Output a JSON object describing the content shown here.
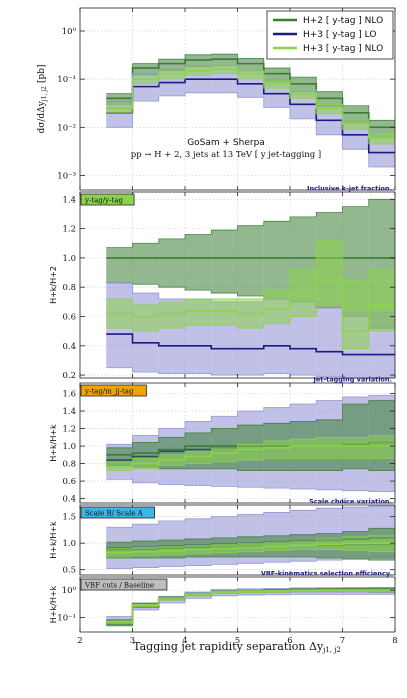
{
  "chart_data": [
    {
      "type": "line",
      "panel": "main",
      "ylabel": "dσ/dΔy_{j1,j2} [pb]",
      "ylabel_display": "dσ/dΔy",
      "ylabel_sub": "j1, j2",
      "ylabel_unit": "[pb]",
      "yscale": "log",
      "ylim": [
        0.0005,
        3
      ],
      "ytick_labels": [
        "10⁰",
        "10⁻¹",
        "10⁻²",
        "10⁻³"
      ],
      "ytick_values": [
        1,
        0.1,
        0.01,
        0.001
      ],
      "annotation_line1": "GoSam + Sherpa",
      "annotation_line2": "pp → H + 2, 3 jets at 13 TeV  [ y jet-tagging ]",
      "legend": [
        {
          "label": "H+2 [ y-tag ] NLO",
          "color": "#3a7d33"
        },
        {
          "label": "H+3 [ y-tag ] LO",
          "color": "#1a1a80"
        },
        {
          "label": "H+3 [ y-tag ] NLO",
          "color": "#8cd24c"
        }
      ],
      "bin_edges": [
        2.5,
        3,
        3.5,
        4,
        4.5,
        5,
        5.5,
        6,
        6.5,
        7,
        7.5,
        8
      ],
      "series": [
        {
          "name": "H+2 [ y-tag ] NLO",
          "color": "#3a7d33",
          "fill": "#3a7d33",
          "values": [
            0.04,
            0.17,
            0.21,
            0.25,
            0.26,
            0.21,
            0.13,
            0.08,
            0.04,
            0.02,
            0.01
          ],
          "lower": [
            0.03,
            0.12,
            0.15,
            0.18,
            0.19,
            0.15,
            0.09,
            0.055,
            0.028,
            0.012,
            0.006
          ],
          "upper": [
            0.05,
            0.21,
            0.26,
            0.32,
            0.33,
            0.27,
            0.17,
            0.11,
            0.055,
            0.028,
            0.014
          ]
        },
        {
          "name": "H+3 [ y-tag ] LO",
          "color": "#1a1a80",
          "fill": "#8e8ed4",
          "values": [
            0.02,
            0.07,
            0.085,
            0.1,
            0.1,
            0.08,
            0.05,
            0.03,
            0.014,
            0.007,
            0.003
          ],
          "lower": [
            0.01,
            0.035,
            0.045,
            0.052,
            0.052,
            0.042,
            0.026,
            0.015,
            0.007,
            0.0035,
            0.0015
          ],
          "upper": [
            0.035,
            0.13,
            0.16,
            0.19,
            0.19,
            0.15,
            0.095,
            0.058,
            0.027,
            0.014,
            0.006
          ]
        },
        {
          "name": "H+3 [ y-tag ] NLO",
          "color": "#8cd24c",
          "fill": "#8cd24c",
          "values": [
            0.025,
            0.1,
            0.13,
            0.15,
            0.16,
            0.13,
            0.08,
            0.05,
            0.025,
            0.012,
            0.006
          ],
          "lower": [
            0.02,
            0.08,
            0.1,
            0.12,
            0.13,
            0.1,
            0.065,
            0.04,
            0.019,
            0.009,
            0.0045
          ],
          "upper": [
            0.032,
            0.12,
            0.15,
            0.18,
            0.19,
            0.15,
            0.095,
            0.06,
            0.03,
            0.015,
            0.0075
          ]
        }
      ]
    },
    {
      "type": "line",
      "panel": "ratio1",
      "ylabel": "H+k/H+2",
      "tag": "y-tag/y-tag",
      "tag_color": "#8cd24c",
      "note": "Inclusive k-jet fraction.",
      "ylim": [
        0.18,
        1.45
      ],
      "ytick_labels": [
        "0.2",
        "0.4",
        "0.6",
        "0.8",
        "1.0",
        "1.2",
        "1.4"
      ],
      "ytick_values": [
        0.2,
        0.4,
        0.6,
        0.8,
        1.0,
        1.2,
        1.4
      ],
      "bin_edges": [
        2.5,
        3,
        3.5,
        4,
        4.5,
        5,
        5.5,
        6,
        6.5,
        7,
        7.5,
        8
      ],
      "series": [
        {
          "name": "H+2",
          "color": "#3a7d33",
          "fill": "#3a7d33",
          "values": [
            1.0,
            1.0,
            1.0,
            1.0,
            1.0,
            1.0,
            1.0,
            1.0,
            1.0,
            1.0,
            1.0
          ],
          "lower": [
            0.83,
            0.82,
            0.8,
            0.78,
            0.76,
            0.74,
            0.72,
            0.7,
            0.66,
            0.6,
            0.52
          ],
          "upper": [
            1.07,
            1.1,
            1.13,
            1.16,
            1.19,
            1.22,
            1.25,
            1.28,
            1.31,
            1.35,
            1.4
          ]
        },
        {
          "name": "H+3 LO",
          "color": "#1a1a80",
          "fill": "#8e8ed4",
          "values": [
            0.48,
            0.42,
            0.4,
            0.4,
            0.38,
            0.38,
            0.4,
            0.38,
            0.36,
            0.34,
            0.34
          ],
          "lower": [
            0.25,
            0.22,
            0.21,
            0.21,
            0.2,
            0.2,
            0.21,
            0.2,
            0.19,
            0.18,
            0.18
          ],
          "upper": [
            0.83,
            0.76,
            0.72,
            0.72,
            0.7,
            0.7,
            0.72,
            0.7,
            0.66,
            0.63,
            0.63
          ]
        },
        {
          "name": "H+3 NLO",
          "color": "#8cd24c",
          "fill": "#8cd24c",
          "values": [
            0.62,
            0.6,
            0.62,
            0.64,
            0.64,
            0.62,
            0.65,
            0.75,
            0.85,
            0.5,
            0.68
          ],
          "lower": [
            0.52,
            0.5,
            0.52,
            0.54,
            0.54,
            0.52,
            0.55,
            0.6,
            0.68,
            0.38,
            0.5
          ],
          "upper": [
            0.72,
            0.68,
            0.7,
            0.72,
            0.72,
            0.72,
            0.78,
            0.92,
            1.12,
            0.85,
            0.92
          ]
        }
      ]
    },
    {
      "type": "line",
      "panel": "ratio2",
      "ylabel": "H+k/H+k",
      "tag": "y-tag/m_jj-tag",
      "tag_color": "#f0a400",
      "note": "Jet-tagging variation.",
      "ylim": [
        0.35,
        1.72
      ],
      "ytick_labels": [
        "0.4",
        "0.6",
        "0.8",
        "1.0",
        "1.2",
        "1.4",
        "1.6"
      ],
      "ytick_values": [
        0.4,
        0.6,
        0.8,
        1.0,
        1.2,
        1.4,
        1.6
      ],
      "bin_edges": [
        2.5,
        3,
        3.5,
        4,
        4.5,
        5,
        5.5,
        6,
        6.5,
        7,
        7.5,
        8
      ],
      "series": [
        {
          "name": "H+3 LO",
          "color": "#1a1a80",
          "fill": "#8e8ed4",
          "values": [
            0.84,
            0.88,
            0.94,
            0.96,
            0.98,
            1.0,
            1.0,
            1.0,
            1.0,
            1.0,
            1.0
          ],
          "lower": [
            0.62,
            0.58,
            0.56,
            0.55,
            0.54,
            0.53,
            0.52,
            0.51,
            0.5,
            0.49,
            0.48
          ],
          "upper": [
            1.02,
            1.12,
            1.2,
            1.28,
            1.34,
            1.4,
            1.44,
            1.48,
            1.52,
            1.56,
            1.58
          ]
        },
        {
          "name": "H+2 NLO",
          "color": "#3a7d33",
          "fill": "#3a7d33",
          "values": [
            0.9,
            0.92,
            0.96,
            1.0,
            1.0,
            1.0,
            1.0,
            1.0,
            1.0,
            1.02,
            1.04
          ],
          "lower": [
            0.78,
            0.76,
            0.74,
            0.74,
            0.74,
            0.72,
            0.72,
            0.72,
            0.72,
            0.74,
            0.72
          ],
          "upper": [
            0.98,
            1.04,
            1.1,
            1.15,
            1.2,
            1.24,
            1.26,
            1.28,
            1.3,
            1.48,
            1.52
          ]
        },
        {
          "name": "H+3 NLO",
          "color": "#8cd24c",
          "fill": "#8cd24c",
          "values": [
            0.76,
            0.8,
            0.84,
            0.88,
            0.92,
            0.96,
            0.98,
            1.0,
            1.0,
            1.0,
            1.0
          ],
          "lower": [
            0.72,
            0.74,
            0.78,
            0.8,
            0.82,
            0.84,
            0.86,
            0.86,
            0.86,
            0.86,
            0.86
          ],
          "upper": [
            0.82,
            0.86,
            0.9,
            0.94,
            0.98,
            1.02,
            1.06,
            1.08,
            1.1,
            1.1,
            1.12
          ]
        }
      ]
    },
    {
      "type": "line",
      "panel": "ratio3",
      "ylabel": "H+k/H+k",
      "tag": "Scale B/ Scale A",
      "tag_color": "#3cb4e6",
      "note": "Scale choice variation.",
      "ylim": [
        0.4,
        1.72
      ],
      "ytick_labels": [
        "0.5",
        "1.0",
        "1.5"
      ],
      "ytick_values": [
        0.5,
        1.0,
        1.5
      ],
      "bin_edges": [
        2.5,
        3,
        3.5,
        4,
        4.5,
        5,
        5.5,
        6,
        6.5,
        7,
        7.5,
        8
      ],
      "series": [
        {
          "name": "H+3 LO",
          "color": "#1a1a80",
          "fill": "#8e8ed4",
          "values": [
            0.9,
            0.92,
            0.94,
            0.96,
            0.98,
            1.0,
            1.02,
            1.04,
            1.06,
            1.08,
            1.1
          ],
          "lower": [
            0.52,
            0.54,
            0.56,
            0.58,
            0.6,
            0.62,
            0.64,
            0.66,
            0.68,
            0.7,
            0.72
          ],
          "upper": [
            1.3,
            1.36,
            1.42,
            1.46,
            1.5,
            1.54,
            1.58,
            1.62,
            1.66,
            1.68,
            1.7
          ]
        },
        {
          "name": "H+2 NLO",
          "color": "#3a7d33",
          "fill": "#3a7d33",
          "values": [
            0.88,
            0.88,
            0.9,
            0.92,
            0.92,
            0.94,
            0.94,
            0.96,
            0.96,
            0.98,
            0.98
          ],
          "lower": [
            0.72,
            0.72,
            0.72,
            0.74,
            0.74,
            0.74,
            0.74,
            0.74,
            0.72,
            0.7,
            0.68
          ],
          "upper": [
            1.02,
            1.04,
            1.06,
            1.08,
            1.1,
            1.12,
            1.14,
            1.16,
            1.18,
            1.22,
            1.28
          ]
        },
        {
          "name": "H+3 NLO",
          "color": "#8cd24c",
          "fill": "#8cd24c",
          "values": [
            0.82,
            0.84,
            0.86,
            0.88,
            0.9,
            0.92,
            0.94,
            0.96,
            0.98,
            1.0,
            1.0
          ],
          "lower": [
            0.74,
            0.76,
            0.78,
            0.8,
            0.82,
            0.84,
            0.86,
            0.88,
            0.88,
            0.86,
            0.84
          ],
          "upper": [
            0.9,
            0.92,
            0.94,
            0.96,
            0.98,
            1.0,
            1.02,
            1.04,
            1.08,
            1.12,
            1.14
          ]
        }
      ]
    },
    {
      "type": "line",
      "panel": "ratio4",
      "ylabel": "H+k/H+k",
      "tag": "VBF cuts / Baseline",
      "tag_color": "#bdbdbd",
      "note": "VBF-kinematics selection efficiency.",
      "yscale": "log",
      "ylim": [
        0.03,
        3
      ],
      "ytick_labels": [
        "10⁰",
        "10⁻¹"
      ],
      "ytick_values": [
        1,
        0.1
      ],
      "xlabel": "Tagging jet rapidity separation  Δy_{j1, j2}",
      "xlabel_display": "Tagging jet rapidity separation  Δy",
      "xlabel_sub": "j1, j2",
      "xlim": [
        2,
        8
      ],
      "xtick_labels": [
        "2",
        "3",
        "4",
        "5",
        "6",
        "7",
        "8"
      ],
      "xtick_values": [
        2,
        3,
        4,
        5,
        6,
        7,
        8
      ],
      "bin_edges": [
        2.5,
        3,
        3.5,
        4,
        4.5,
        5,
        5.5,
        6,
        6.5,
        7,
        7.5,
        8
      ],
      "series": [
        {
          "name": "H+3 LO",
          "color": "#1a1a80",
          "fill": "#8e8ed4",
          "values": [
            0.08,
            0.25,
            0.45,
            0.65,
            0.8,
            0.85,
            0.88,
            0.9,
            0.9,
            0.9,
            0.9
          ],
          "lower": [
            0.055,
            0.19,
            0.34,
            0.5,
            0.62,
            0.66,
            0.68,
            0.7,
            0.7,
            0.7,
            0.7
          ],
          "upper": [
            0.11,
            0.33,
            0.6,
            0.85,
            1.05,
            1.12,
            1.16,
            1.2,
            1.22,
            1.24,
            1.26
          ]
        },
        {
          "name": "H+2 NLO",
          "color": "#3a7d33",
          "fill": "#3a7d33",
          "values": [
            0.06,
            0.3,
            0.5,
            0.7,
            0.85,
            0.9,
            0.95,
            1.0,
            1.0,
            1.0,
            1.0
          ],
          "lower": [
            0.05,
            0.26,
            0.44,
            0.62,
            0.76,
            0.8,
            0.84,
            0.88,
            0.88,
            0.88,
            0.86
          ],
          "upper": [
            0.07,
            0.34,
            0.56,
            0.78,
            0.94,
            1.0,
            1.06,
            1.12,
            1.14,
            1.16,
            1.18
          ]
        },
        {
          "name": "H+3 NLO",
          "color": "#8cd24c",
          "fill": "#8cd24c",
          "values": [
            0.07,
            0.28,
            0.48,
            0.68,
            0.82,
            0.88,
            0.92,
            0.95,
            0.96,
            0.96,
            0.96
          ],
          "lower": [
            0.06,
            0.25,
            0.43,
            0.61,
            0.75,
            0.8,
            0.84,
            0.87,
            0.88,
            0.88,
            0.88
          ],
          "upper": [
            0.08,
            0.31,
            0.53,
            0.75,
            0.9,
            0.96,
            1.0,
            1.03,
            1.04,
            1.04,
            1.04
          ]
        }
      ]
    }
  ]
}
